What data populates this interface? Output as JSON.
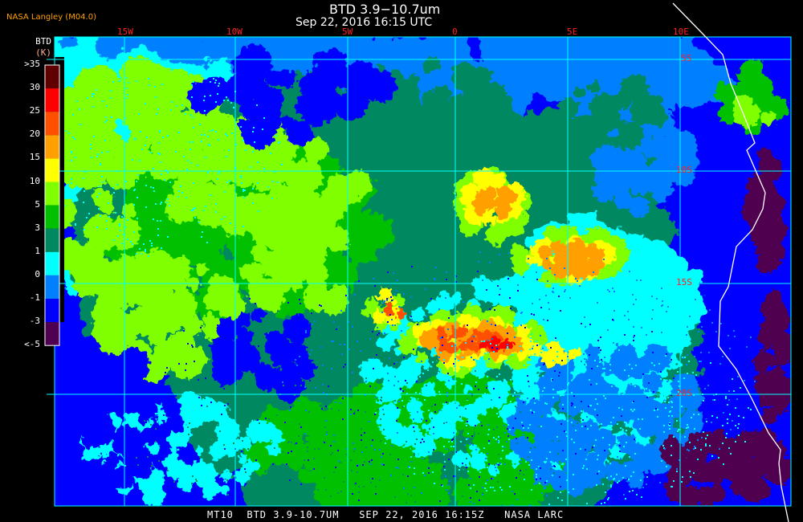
{
  "header": {
    "title": "BTD 3.9−10.7um",
    "datetime": "Sep 22, 2016 16:15 UTC",
    "organization": "NASA Langley (M04.0)"
  },
  "colorbar": {
    "title": "BTD",
    "unit": "(K)",
    "labels": [
      ">35",
      "30",
      "25",
      "20",
      "15",
      "10",
      "5",
      "3",
      "1",
      "0",
      "-1",
      "-3",
      "<-5"
    ],
    "colors": [
      "#600000",
      "#ff0000",
      "#ff5000",
      "#ffa000",
      "#ffff00",
      "#80ff00",
      "#00c000",
      "#008860",
      "#00ffff",
      "#0080ff",
      "#0000ff",
      "#500050"
    ]
  },
  "grid": {
    "longitude_labels": [
      "15W",
      "10W",
      "5W",
      "0",
      "5E",
      "10E"
    ],
    "latitude_labels": [
      "5S",
      "10S",
      "15S",
      "20S"
    ],
    "grid_color": "#00ffff",
    "label_color": "#ff2020",
    "coastline_color": "#ffffff"
  },
  "footer": {
    "satellite": "MT10",
    "product": "BTD 3.9-10.7UM",
    "datetime": "SEP 22, 2016 16:15Z",
    "source": "NASA LARC"
  }
}
